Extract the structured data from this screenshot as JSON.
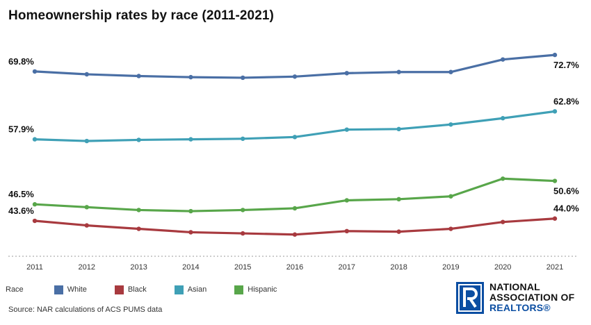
{
  "title": "Homeownership rates by race (2011-2021)",
  "legend": {
    "heading": "Race",
    "items": [
      "White",
      "Black",
      "Asian",
      "Hispanic"
    ]
  },
  "source": "Source: NAR calculations of ACS PUMS data",
  "logo": {
    "line1": "NATIONAL",
    "line2": "ASSOCIATION OF",
    "line3": "REALTORS®"
  },
  "colors": {
    "White": "#4a6fa5",
    "Black": "#a83a3f",
    "Asian": "#3fa0b6",
    "Hispanic": "#58a64a",
    "logo_blue": "#0b4ea2"
  },
  "chart_data": {
    "type": "line",
    "title": "Homeownership rates by race (2011-2021)",
    "x": [
      "2011",
      "2012",
      "2013",
      "2014",
      "2015",
      "2016",
      "2017",
      "2018",
      "2019",
      "2020",
      "2021"
    ],
    "series": [
      {
        "name": "White",
        "color": "#4a6fa5",
        "values": [
          69.8,
          69.3,
          69.0,
          68.8,
          68.7,
          68.9,
          69.5,
          69.7,
          69.7,
          71.9,
          72.7
        ],
        "start_label": "69.8%",
        "end_label": "72.7%"
      },
      {
        "name": "Asian",
        "color": "#3fa0b6",
        "values": [
          57.9,
          57.6,
          57.8,
          57.9,
          58.0,
          58.3,
          59.6,
          59.7,
          60.5,
          61.6,
          62.8
        ],
        "start_label": "57.9%",
        "end_label": "62.8%"
      },
      {
        "name": "Hispanic",
        "color": "#58a64a",
        "values": [
          46.5,
          46.0,
          45.5,
          45.3,
          45.5,
          45.8,
          47.2,
          47.4,
          47.9,
          51.0,
          50.6
        ],
        "start_label": "46.5%",
        "end_label": "50.6%"
      },
      {
        "name": "Black",
        "color": "#a83a3f",
        "values": [
          43.6,
          42.8,
          42.2,
          41.6,
          41.4,
          41.2,
          41.8,
          41.7,
          42.2,
          43.4,
          44.0
        ],
        "start_label": "43.6%",
        "end_label": "44.0%"
      }
    ],
    "ylim": [
      38,
      76
    ],
    "xlabel": "",
    "ylabel": "",
    "grid": false,
    "legend_position": "bottom-left"
  }
}
